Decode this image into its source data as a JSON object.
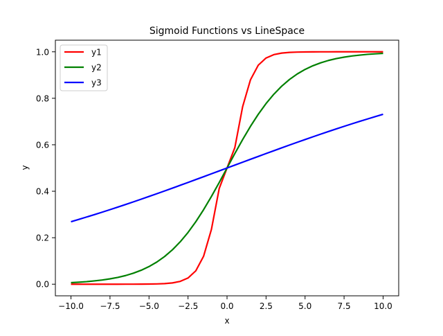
{
  "chart_data": {
    "type": "line",
    "title": "Sigmoid Functions vs LineSpace",
    "xlabel": "x",
    "ylabel": "y",
    "xlim": [
      -11.0,
      11.0
    ],
    "ylim": [
      -0.05,
      1.05
    ],
    "xticks": [
      -10.0,
      -7.5,
      -5.0,
      -2.5,
      0.0,
      2.5,
      5.0,
      7.5,
      10.0
    ],
    "xtick_labels": [
      "−10.0",
      "−7.5",
      "−5.0",
      "−2.5",
      "0.0",
      "2.5",
      "5.0",
      "7.5",
      "10.0"
    ],
    "yticks": [
      0.0,
      0.2,
      0.4,
      0.6,
      0.8,
      1.0
    ],
    "ytick_labels": [
      "0.0",
      "0.2",
      "0.4",
      "0.6",
      "0.8",
      "1.0"
    ],
    "grid": false,
    "legend_position": "top-left",
    "x": [
      -10,
      -9.5,
      -9,
      -8.5,
      -8,
      -7.5,
      -7,
      -6.5,
      -6,
      -5.5,
      -5,
      -4.5,
      -4,
      -3.5,
      -3,
      -2.5,
      -2,
      -1.5,
      -1,
      -0.5,
      0,
      0.5,
      1,
      1.5,
      2,
      2.5,
      3,
      3.5,
      4,
      4.5,
      5,
      5.5,
      6,
      6.5,
      7,
      7.5,
      8,
      8.5,
      9,
      9.5,
      10
    ],
    "series": [
      {
        "name": "y1",
        "color": "#ff0000",
        "values": [
          0.0,
          0.0,
          0.0,
          0.0,
          0.0,
          0.0,
          0.0,
          0.0001,
          0.0001,
          0.0003,
          0.0006,
          0.0012,
          0.0025,
          0.0055,
          0.0121,
          0.0266,
          0.0577,
          0.1207,
          0.2359,
          0.4123,
          0.5,
          0.5877,
          0.7641,
          0.8793,
          0.9423,
          0.9734,
          0.9879,
          0.9945,
          0.9975,
          0.9988,
          0.9994,
          0.9997,
          0.9999,
          0.9999,
          1.0,
          1.0,
          1.0,
          1.0,
          1.0,
          1.0,
          1.0
        ]
      },
      {
        "name": "y2",
        "color": "#008000",
        "values": [
          0.0067,
          0.0086,
          0.011,
          0.0142,
          0.018,
          0.023,
          0.0293,
          0.0372,
          0.0474,
          0.0601,
          0.0759,
          0.0953,
          0.1192,
          0.148,
          0.1824,
          0.2227,
          0.2689,
          0.3208,
          0.3775,
          0.4378,
          0.5,
          0.5622,
          0.6225,
          0.6792,
          0.7311,
          0.7773,
          0.8176,
          0.852,
          0.8808,
          0.9047,
          0.9241,
          0.9399,
          0.9526,
          0.9628,
          0.9707,
          0.977,
          0.982,
          0.9858,
          0.989,
          0.9914,
          0.9933
        ]
      },
      {
        "name": "y3",
        "color": "#0000ff",
        "values": [
          0.2689,
          0.2789,
          0.2891,
          0.2994,
          0.31,
          0.3208,
          0.3318,
          0.343,
          0.3543,
          0.3658,
          0.3775,
          0.3894,
          0.4013,
          0.4134,
          0.4256,
          0.4378,
          0.4502,
          0.4626,
          0.475,
          0.4875,
          0.5,
          0.5125,
          0.525,
          0.5374,
          0.5498,
          0.5622,
          0.5744,
          0.5866,
          0.5987,
          0.6106,
          0.6225,
          0.6342,
          0.6457,
          0.657,
          0.6682,
          0.6792,
          0.69,
          0.7006,
          0.7109,
          0.7211,
          0.7311
        ]
      }
    ]
  }
}
